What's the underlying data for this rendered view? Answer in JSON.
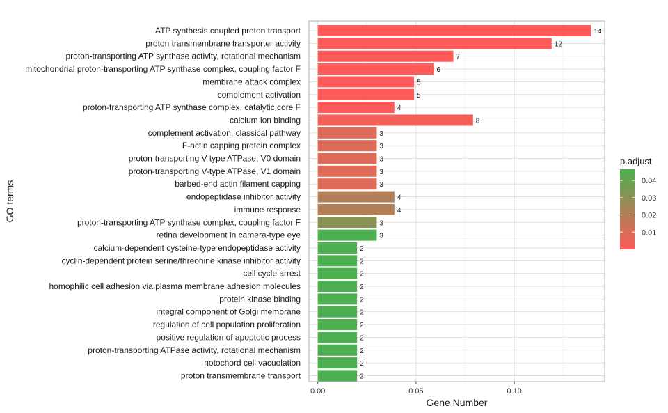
{
  "chart_data": {
    "type": "bar",
    "orientation": "horizontal",
    "xlabel": "Gene Number",
    "ylabel": "GO terms",
    "xlim": [
      -0.0045,
      0.146
    ],
    "xticks": [
      0.0,
      0.05,
      0.1
    ],
    "xtick_labels": [
      "0.00",
      "0.05",
      "0.10"
    ],
    "grid": true,
    "bars": [
      {
        "term": "ATP synthesis coupled proton transport",
        "value": 0.139,
        "count": "14",
        "padj": 0.0
      },
      {
        "term": "proton transmembrane transporter activity",
        "value": 0.119,
        "count": "12",
        "padj": 0.0
      },
      {
        "term": "proton-transporting ATP synthase activity, rotational mechanism",
        "value": 0.069,
        "count": "7",
        "padj": 0.0
      },
      {
        "term": "mitochondrial proton-transporting ATP synthase complex, coupling factor F",
        "value": 0.059,
        "count": "6",
        "padj": 0.0
      },
      {
        "term": "membrane attack complex",
        "value": 0.049,
        "count": "5",
        "padj": 0.0
      },
      {
        "term": "complement activation",
        "value": 0.049,
        "count": "5",
        "padj": 0.0
      },
      {
        "term": "proton-transporting ATP synthase complex, catalytic core F",
        "value": 0.039,
        "count": "4",
        "padj": 0.0
      },
      {
        "term": "calcium ion binding",
        "value": 0.079,
        "count": "8",
        "padj": 0.0035
      },
      {
        "term": "complement activation, classical pathway",
        "value": 0.03,
        "count": "3",
        "padj": 0.0085
      },
      {
        "term": "F-actin capping protein complex",
        "value": 0.03,
        "count": "3",
        "padj": 0.0085
      },
      {
        "term": "proton-transporting V-type ATPase, V0 domain",
        "value": 0.03,
        "count": "3",
        "padj": 0.0085
      },
      {
        "term": "proton-transporting V-type ATPase, V1 domain",
        "value": 0.03,
        "count": "3",
        "padj": 0.0085
      },
      {
        "term": "barbed-end actin filament capping",
        "value": 0.03,
        "count": "3",
        "padj": 0.0085
      },
      {
        "term": "endopeptidase inhibitor activity",
        "value": 0.039,
        "count": "4",
        "padj": 0.02
      },
      {
        "term": "immune response",
        "value": 0.039,
        "count": "4",
        "padj": 0.02
      },
      {
        "term": "proton-transporting ATP synthase complex, coupling factor F",
        "value": 0.03,
        "count": "3",
        "padj": 0.031
      },
      {
        "term": "retina development in camera-type eye",
        "value": 0.03,
        "count": "3",
        "padj": 0.0465
      },
      {
        "term": "calcium-dependent cysteine-type endopeptidase activity",
        "value": 0.02,
        "count": "2",
        "padj": 0.0465
      },
      {
        "term": "cyclin-dependent protein serine/threonine kinase inhibitor activity",
        "value": 0.02,
        "count": "2",
        "padj": 0.0465
      },
      {
        "term": "cell cycle arrest",
        "value": 0.02,
        "count": "2",
        "padj": 0.0465
      },
      {
        "term": "homophilic cell adhesion via plasma membrane adhesion molecules",
        "value": 0.02,
        "count": "2",
        "padj": 0.0465
      },
      {
        "term": "protein kinase binding",
        "value": 0.02,
        "count": "2",
        "padj": 0.0465
      },
      {
        "term": "integral component of Golgi membrane",
        "value": 0.02,
        "count": "2",
        "padj": 0.0465
      },
      {
        "term": "regulation of cell population proliferation",
        "value": 0.02,
        "count": "2",
        "padj": 0.0465
      },
      {
        "term": "positive regulation of apoptotic process",
        "value": 0.02,
        "count": "2",
        "padj": 0.0465
      },
      {
        "term": "proton-transporting ATPase activity, rotational mechanism",
        "value": 0.02,
        "count": "2",
        "padj": 0.0465
      },
      {
        "term": "notochord cell vacuolation",
        "value": 0.02,
        "count": "2",
        "padj": 0.0465
      },
      {
        "term": "proton transmembrane transport",
        "value": 0.02,
        "count": "2",
        "padj": 0.0465
      }
    ],
    "legend": {
      "title": "p.adjust",
      "placement": "right",
      "range": [
        0.0,
        0.0465
      ],
      "ticks": [
        0.01,
        0.02,
        0.03,
        0.04
      ],
      "tick_labels": [
        "0.01",
        "0.02",
        "0.03",
        "0.04"
      ],
      "color_low": "#ff5a5a",
      "color_high": "#4caf50"
    },
    "colors": {
      "grid": "#d9d9d9",
      "panel_border": "#b3b3b3",
      "tick": "#4d4d4d"
    }
  }
}
